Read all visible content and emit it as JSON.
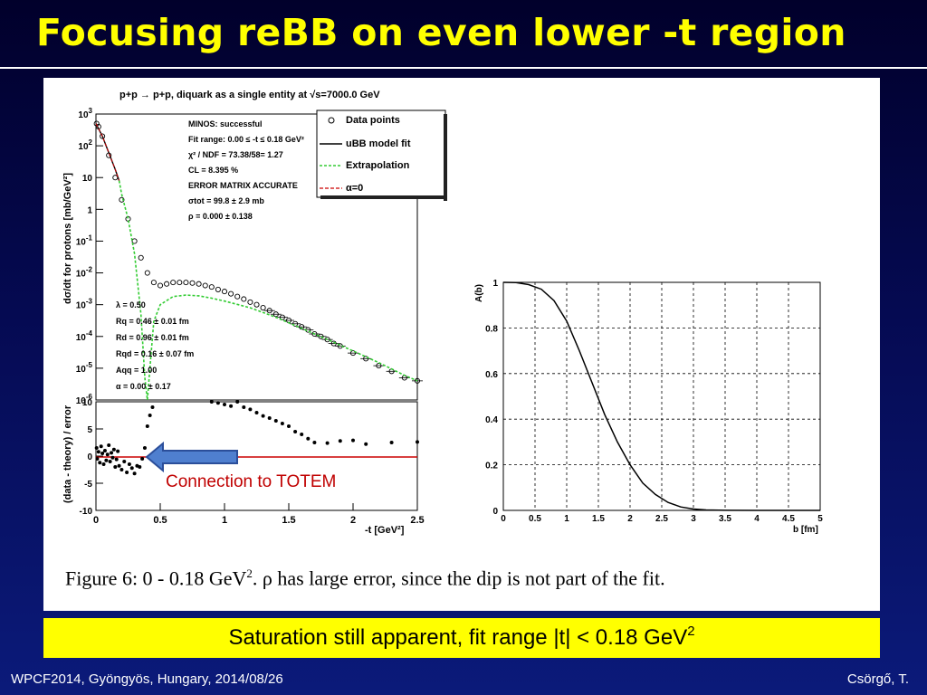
{
  "slide": {
    "title": "Focusing reBB on even lower -t region",
    "highlight": {
      "text": "Saturation still apparent, fit range |t| < 0.18 GeV",
      "sup": "2"
    },
    "footer_left": "WPCF2014, Gyöngyös, Hungary, 2014/08/26",
    "footer_right": "Csörgő, T.",
    "title_color": "#ffff00",
    "highlight_bg": "#ffff00",
    "annotation": "Connection to TOTEM",
    "annotation_color": "#c00000"
  },
  "figure": {
    "caption_parts": {
      "a": "Figure 6:  0 - 0.18 GeV",
      "b": "2",
      "c": ".  ρ has large error, since the dip is not part of the fit."
    }
  },
  "chart_data": [
    {
      "type": "scatter",
      "title": "p+p → p+p, diquark as a single entity at √s=7000.0 GeV",
      "xlabel": "-t [GeV²]",
      "ylabel": "dσ/dt for protons [mb/GeV²]",
      "xlim": [
        0,
        2.5
      ],
      "ylim": [
        1e-06,
        1000.0
      ],
      "yscale": "log",
      "y_ticks": [
        "10^3",
        "10^2",
        "10",
        "1",
        "10^-1",
        "10^-2",
        "10^-3",
        "10^-4",
        "10^-5",
        "10^-6"
      ],
      "legend": [
        "Data points",
        "uBB model fit",
        "Extrapolation",
        "α=0"
      ],
      "fit_box": [
        "MINOS: successful",
        "Fit range: 0.00 ≤ -t ≤ 0.18 GeV²",
        "χ² / NDF = 73.38/58= 1.27",
        "CL = 8.395 %",
        "ERROR MATRIX ACCURATE",
        "σtot = 99.8 ± 2.9 mb",
        "ρ = 0.000 ± 0.138"
      ],
      "params_box": [
        "λ = 0.50",
        "Rq = 0.46 ± 0.01 fm",
        "Rd = 0.96 ± 0.01 fm",
        "Rqd = 0.16 ± 0.07 fm",
        "Aqq = 1.00",
        "α = 0.00 ± 0.17"
      ],
      "series": [
        {
          "name": "Data points",
          "x": [
            0.005,
            0.02,
            0.05,
            0.1,
            0.15,
            0.2,
            0.25,
            0.3,
            0.35,
            0.4,
            0.45,
            0.5,
            0.55,
            0.6,
            0.65,
            0.7,
            0.75,
            0.8,
            0.85,
            0.9,
            0.95,
            1.0,
            1.05,
            1.1,
            1.15,
            1.2,
            1.25,
            1.3,
            1.35,
            1.4,
            1.45,
            1.5,
            1.55,
            1.6,
            1.65,
            1.7,
            1.75,
            1.8,
            1.85,
            1.9,
            2.0,
            2.1,
            2.2,
            2.3,
            2.4,
            2.5
          ],
          "y": [
            500,
            400,
            200,
            50,
            10,
            2,
            0.5,
            0.1,
            0.03,
            0.01,
            0.005,
            0.004,
            0.0045,
            0.005,
            0.005,
            0.005,
            0.0048,
            0.0045,
            0.004,
            0.0036,
            0.003,
            0.0026,
            0.0022,
            0.0018,
            0.0015,
            0.0012,
            0.001,
            0.0008,
            0.00065,
            0.0005,
            0.0004,
            0.00032,
            0.00025,
            0.0002,
            0.00016,
            0.00012,
            0.0001,
            8e-05,
            6e-05,
            5e-05,
            3e-05,
            2e-05,
            1.2e-05,
            8e-06,
            5e-06,
            4e-06
          ]
        },
        {
          "name": "uBB model fit",
          "x": [
            0,
            0.05,
            0.1,
            0.15,
            0.18
          ],
          "y": [
            500,
            200,
            60,
            18,
            8
          ]
        },
        {
          "name": "Extrapolation",
          "x": [
            0.18,
            0.2,
            0.25,
            0.3,
            0.35,
            0.38,
            0.4,
            0.42,
            0.45,
            0.5,
            0.6,
            0.7,
            0.8,
            0.9,
            1.0,
            1.2,
            1.4,
            1.6,
            1.8,
            2.0,
            2.2,
            2.4,
            2.5
          ],
          "y": [
            8,
            3,
            0.5,
            0.04,
            0.0005,
            5e-06,
            1e-06,
            1e-05,
            0.0003,
            0.001,
            0.0018,
            0.002,
            0.0019,
            0.0016,
            0.0013,
            0.0008,
            0.0004,
            0.00018,
            8e-05,
            3.5e-05,
            1.5e-05,
            6e-06,
            4e-06
          ]
        },
        {
          "name": "α=0",
          "x": [
            0,
            0.05,
            0.1,
            0.15,
            0.18
          ],
          "y": [
            500,
            200,
            60,
            18,
            8
          ]
        }
      ]
    },
    {
      "type": "scatter",
      "xlabel": "-t [GeV²]",
      "ylabel": "(data - theory) / error",
      "xlim": [
        0,
        2.5
      ],
      "ylim": [
        -10,
        10
      ],
      "y_ticks": [
        10,
        5,
        0,
        -5,
        -10
      ],
      "series": [
        {
          "name": "residuals",
          "x": [
            0.005,
            0.01,
            0.02,
            0.03,
            0.04,
            0.05,
            0.06,
            0.07,
            0.08,
            0.09,
            0.1,
            0.11,
            0.12,
            0.13,
            0.14,
            0.15,
            0.16,
            0.17,
            0.18,
            0.2,
            0.22,
            0.24,
            0.26,
            0.28,
            0.3,
            0.32,
            0.34,
            0.36,
            0.38,
            0.4,
            0.42,
            0.44,
            0.9,
            0.95,
            1.0,
            1.05,
            1.1,
            1.15,
            1.2,
            1.25,
            1.3,
            1.35,
            1.4,
            1.45,
            1.5,
            1.55,
            1.6,
            1.65,
            1.7,
            1.8,
            1.9,
            2.0,
            2.1,
            2.3,
            2.5
          ],
          "y": [
            1.5,
            -0.5,
            0.8,
            -1.2,
            1.8,
            0.5,
            -1.5,
            1.0,
            -0.8,
            0.3,
            2.0,
            -1.0,
            0.6,
            -0.3,
            1.2,
            -2.0,
            -0.6,
            0.9,
            -1.8,
            -2.5,
            -1.0,
            -3.0,
            -1.5,
            -2.2,
            -3.2,
            -1.8,
            -2.0,
            -0.5,
            1.5,
            5.5,
            7.5,
            9.0,
            10,
            9.8,
            9.5,
            9.2,
            10,
            9,
            8.6,
            8,
            7.4,
            7,
            6.5,
            6,
            5.5,
            4.5,
            4,
            3.2,
            2.5,
            2.4,
            2.8,
            2.9,
            2.2,
            2.5,
            2.6
          ]
        }
      ]
    },
    {
      "type": "line",
      "xlabel": "b [fm]",
      "ylabel": "A(b)",
      "xlim": [
        0,
        5
      ],
      "ylim": [
        0,
        1
      ],
      "x_ticks": [
        0,
        0.5,
        1,
        1.5,
        2,
        2.5,
        3,
        3.5,
        4,
        4.5,
        5
      ],
      "y_ticks": [
        0,
        0.2,
        0.4,
        0.6,
        0.8,
        1
      ],
      "series": [
        {
          "name": "A(b)",
          "x": [
            0,
            0.2,
            0.4,
            0.6,
            0.8,
            1.0,
            1.2,
            1.4,
            1.6,
            1.8,
            2.0,
            2.2,
            2.4,
            2.6,
            2.8,
            3.0,
            3.2,
            3.5,
            4.0,
            4.5,
            5.0
          ],
          "y": [
            1.0,
            0.999,
            0.99,
            0.97,
            0.92,
            0.83,
            0.7,
            0.56,
            0.42,
            0.3,
            0.2,
            0.12,
            0.07,
            0.035,
            0.015,
            0.006,
            0.002,
            0.0005,
            0,
            0,
            0
          ]
        }
      ]
    }
  ]
}
